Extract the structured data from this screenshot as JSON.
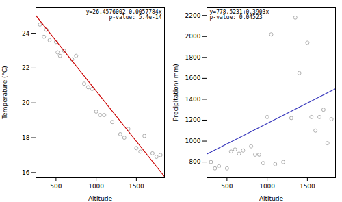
{
  "chart_data": [
    {
      "type": "scatter",
      "xlabel": "Altitude",
      "ylabel": "Temperature (°C)",
      "xlim": [
        250,
        1850
      ],
      "ylim": [
        15.7,
        25.5
      ],
      "xticks": [
        500,
        1000,
        1500
      ],
      "yticks": [
        16,
        18,
        20,
        22,
        24
      ],
      "series": [
        {
          "type": "scatter",
          "marker": "circle",
          "color": "#999999",
          "x": [
            300,
            350,
            380,
            420,
            500,
            520,
            550,
            600,
            700,
            750,
            850,
            900,
            950,
            1000,
            1050,
            1100,
            1200,
            1300,
            1350,
            1400,
            1500,
            1550,
            1600,
            1700,
            1750,
            1800
          ],
          "values": [
            24.5,
            23.8,
            24.2,
            23.6,
            23.5,
            22.9,
            22.7,
            23.0,
            22.5,
            22.7,
            21.1,
            20.9,
            20.8,
            19.5,
            19.3,
            19.3,
            18.9,
            18.2,
            18.0,
            18.5,
            17.4,
            17.2,
            18.1,
            17.1,
            16.9,
            17.0
          ]
        },
        {
          "type": "line",
          "color": "#CC0000",
          "x": [
            250,
            1850
          ],
          "values": [
            25.0130002,
            15.7675602
          ]
        }
      ],
      "annotations": [
        "y=26.4576002-0.0057784x\np-value: 5.4e-14"
      ]
    },
    {
      "type": "scatter",
      "xlabel": "Altitude",
      "ylabel": "Precipitation( mm)",
      "xlim": [
        250,
        1850
      ],
      "ylim": [
        650,
        2280
      ],
      "xticks": [
        500,
        1000,
        1500
      ],
      "yticks": [
        800,
        1000,
        1200,
        1400,
        1600,
        1800,
        2000,
        2200
      ],
      "series": [
        {
          "type": "scatter",
          "marker": "circle",
          "color": "#999999",
          "x": [
            300,
            350,
            400,
            500,
            550,
            600,
            650,
            700,
            800,
            850,
            900,
            950,
            1000,
            1050,
            1100,
            1200,
            1300,
            1350,
            1400,
            1500,
            1550,
            1600,
            1650,
            1700,
            1750,
            1800
          ],
          "values": [
            800,
            740,
            760,
            740,
            900,
            920,
            880,
            910,
            950,
            870,
            870,
            790,
            1230,
            2020,
            780,
            800,
            1220,
            2180,
            1650,
            1940,
            1230,
            1100,
            1230,
            1300,
            980,
            1210
          ]
        },
        {
          "type": "line",
          "color": "#3333BB",
          "x": [
            250,
            1850
          ],
          "values": [
            876.0981,
            1500.5781
          ]
        }
      ],
      "annotations": [
        "y=778.5231+0.3903x\np-value: 0.04523"
      ]
    }
  ]
}
